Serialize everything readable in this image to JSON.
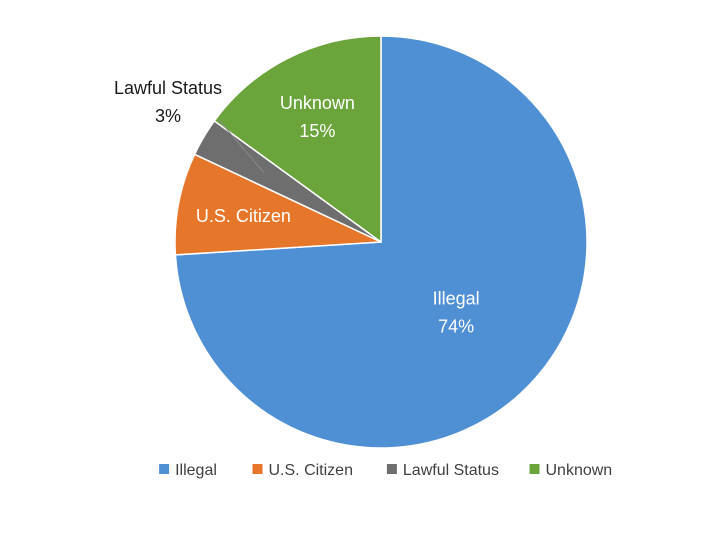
{
  "chart_data": {
    "type": "pie",
    "slices": [
      {
        "label": "Illegal",
        "value": 74,
        "value_label": "74%",
        "color": "#4f8fd3",
        "label_style": "inside",
        "label_color": "#ffffff"
      },
      {
        "label": "U.S. Citizen",
        "value": 8,
        "value_label": "",
        "color": "#e6762a",
        "label_style": "inside",
        "label_color": "#ffffff"
      },
      {
        "label": "Lawful Status",
        "value": 3,
        "value_label": "3%",
        "color": "#6e6e6e",
        "label_style": "callout",
        "label_color": "#1a1a1a"
      },
      {
        "label": "Unknown",
        "value": 15,
        "value_label": "15%",
        "color": "#6aa43b",
        "label_style": "inside",
        "label_color": "#ffffff"
      }
    ],
    "start_angle": "12 o'clock",
    "direction": "clockwise",
    "legend": {
      "position": "bottom",
      "entries": [
        "Illegal",
        "U.S. Citizen",
        "Lawful Status",
        "Unknown"
      ]
    }
  }
}
